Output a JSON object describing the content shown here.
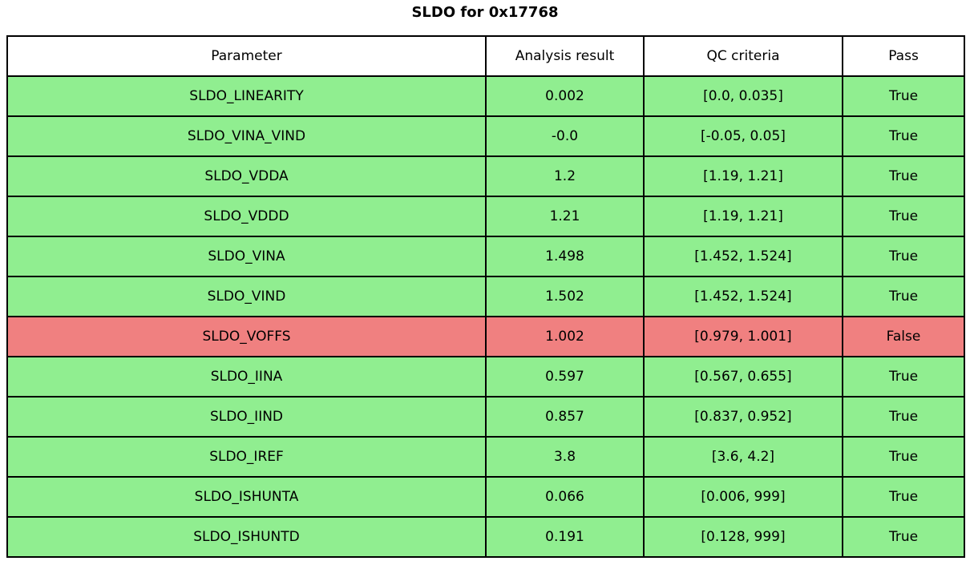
{
  "title": "SLDO for 0x17768",
  "colors": {
    "pass_green": "#90EE90",
    "fail_red": "#F08080",
    "header_bg": "#FFFFFF",
    "border": "#000000",
    "text": "#000000"
  },
  "chart_data": {
    "type": "table",
    "title": "SLDO for 0x17768",
    "columns": [
      "Parameter",
      "Analysis result",
      "QC criteria",
      "Pass"
    ],
    "rows": [
      {
        "parameter": "SLDO_LINEARITY",
        "result": "0.002",
        "criteria": "[0.0, 0.035]",
        "pass": "True"
      },
      {
        "parameter": "SLDO_VINA_VIND",
        "result": "-0.0",
        "criteria": "[-0.05, 0.05]",
        "pass": "True"
      },
      {
        "parameter": "SLDO_VDDA",
        "result": "1.2",
        "criteria": "[1.19, 1.21]",
        "pass": "True"
      },
      {
        "parameter": "SLDO_VDDD",
        "result": "1.21",
        "criteria": "[1.19, 1.21]",
        "pass": "True"
      },
      {
        "parameter": "SLDO_VINA",
        "result": "1.498",
        "criteria": "[1.452, 1.524]",
        "pass": "True"
      },
      {
        "parameter": "SLDO_VIND",
        "result": "1.502",
        "criteria": "[1.452, 1.524]",
        "pass": "True"
      },
      {
        "parameter": "SLDO_VOFFS",
        "result": "1.002",
        "criteria": "[0.979, 1.001]",
        "pass": "False"
      },
      {
        "parameter": "SLDO_IINA",
        "result": "0.597",
        "criteria": "[0.567, 0.655]",
        "pass": "True"
      },
      {
        "parameter": "SLDO_IIND",
        "result": "0.857",
        "criteria": "[0.837, 0.952]",
        "pass": "True"
      },
      {
        "parameter": "SLDO_IREF",
        "result": "3.8",
        "criteria": "[3.6, 4.2]",
        "pass": "True"
      },
      {
        "parameter": "SLDO_ISHUNTA",
        "result": "0.066",
        "criteria": "[0.006, 999]",
        "pass": "True"
      },
      {
        "parameter": "SLDO_ISHUNTD",
        "result": "0.191",
        "criteria": "[0.128, 999]",
        "pass": "True"
      }
    ]
  }
}
